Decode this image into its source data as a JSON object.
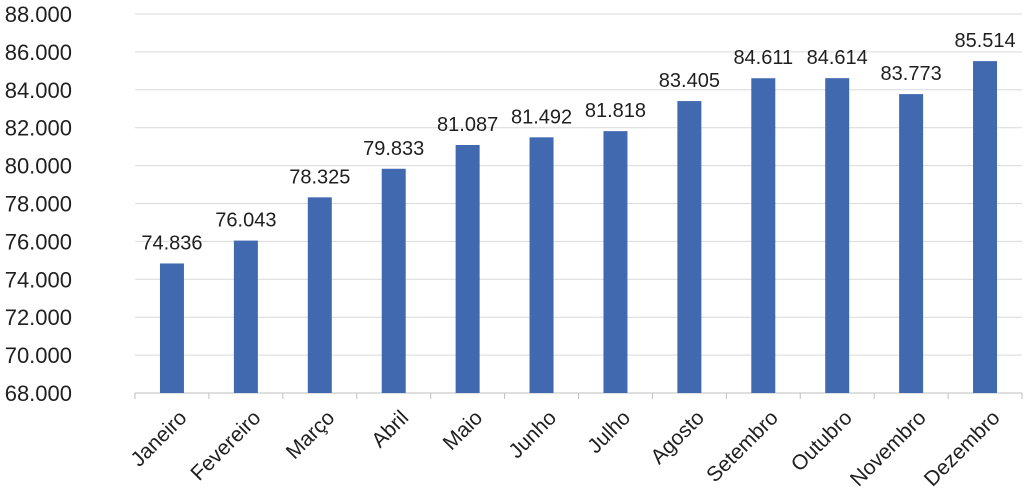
{
  "chart_data": {
    "type": "bar",
    "title": "",
    "xlabel": "",
    "ylabel": "",
    "categories": [
      "Janeiro",
      "Fevereiro",
      "Março",
      "Abril",
      "Maio",
      "Junho",
      "Julho",
      "Agosto",
      "Setembro",
      "Outubro",
      "Novembro",
      "Dezembro"
    ],
    "values": [
      74836,
      76043,
      78325,
      79833,
      81087,
      81492,
      81818,
      83405,
      84611,
      84614,
      83773,
      85514
    ],
    "value_labels": [
      "74.836",
      "76.043",
      "78.325",
      "79.833",
      "81.087",
      "81.492",
      "81.818",
      "83.405",
      "84.611",
      "84.614",
      "83.773",
      "85.514"
    ],
    "ylim": [
      68000,
      88000
    ],
    "y_ticks": [
      68000,
      70000,
      72000,
      74000,
      76000,
      78000,
      80000,
      82000,
      84000,
      86000,
      88000
    ],
    "y_tick_labels": [
      "68.000",
      "70.000",
      "72.000",
      "74.000",
      "76.000",
      "78.000",
      "80.000",
      "82.000",
      "84.000",
      "86.000",
      "88.000"
    ],
    "grid": true,
    "legend": "none",
    "bar_color": "#4169b0"
  }
}
